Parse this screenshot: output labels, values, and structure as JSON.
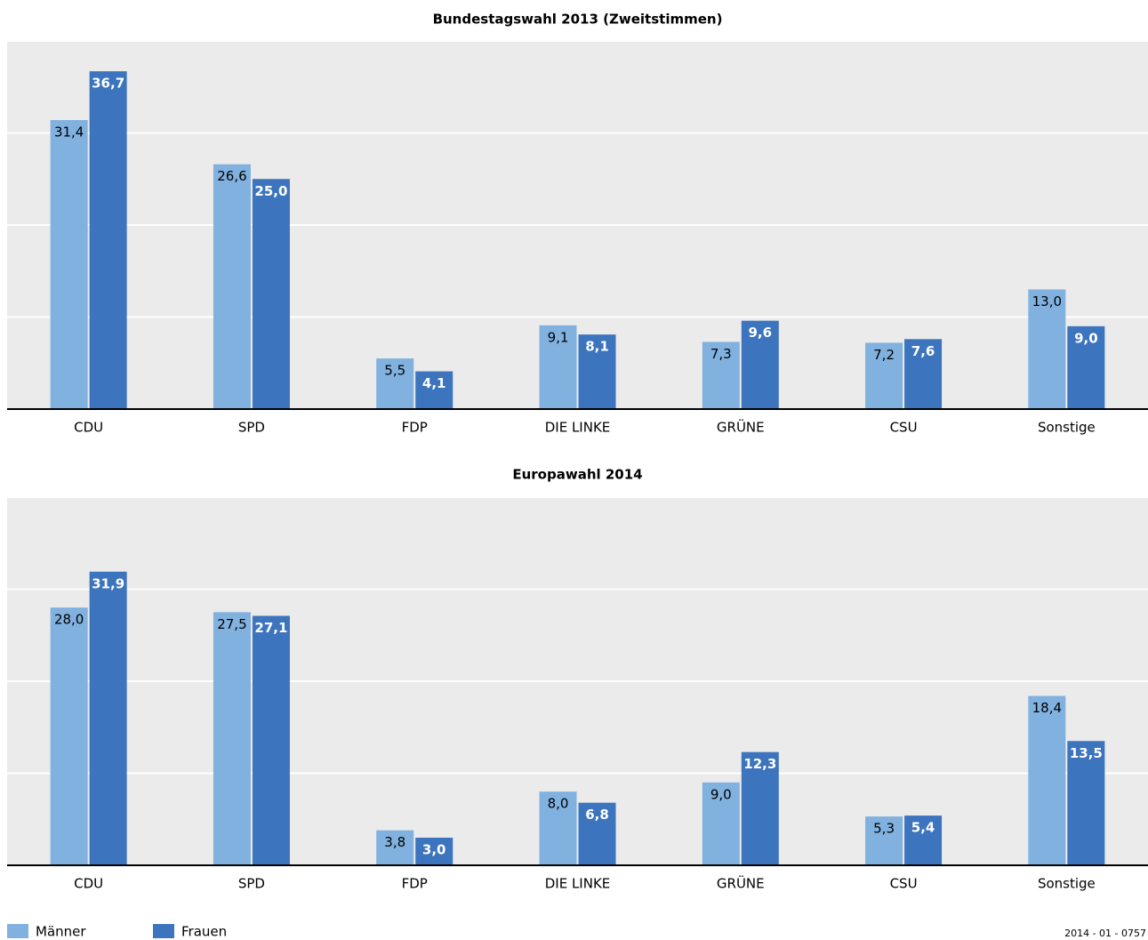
{
  "chart_data": [
    {
      "type": "bar",
      "title": "Bundestagswahl 2013 (Zweitstimmen)",
      "categories": [
        "CDU",
        "SPD",
        "FDP",
        "DIE LINKE",
        "GRÜNE",
        "CSU",
        "Sonstige"
      ],
      "series": [
        {
          "name": "Männer",
          "color": "#80b1df",
          "values": [
            31.4,
            26.6,
            5.5,
            9.1,
            7.3,
            7.2,
            13.0
          ],
          "value_labels": [
            "31,4",
            "26,6",
            "5,5",
            "9,1",
            "7,3",
            "7,2",
            "13,0"
          ]
        },
        {
          "name": "Frauen",
          "color": "#3c74bd",
          "values": [
            36.7,
            25.0,
            4.1,
            8.1,
            9.6,
            7.6,
            9.0
          ],
          "value_labels": [
            "36,7",
            "25,0",
            "4,1",
            "8,1",
            "9,6",
            "7,6",
            "9,0"
          ]
        }
      ],
      "ylim": [
        0,
        40
      ],
      "yticks": [
        0,
        10,
        20,
        30,
        40
      ],
      "grid": true,
      "legend": "bottom-left"
    },
    {
      "type": "bar",
      "title": "Europawahl 2014",
      "categories": [
        "CDU",
        "SPD",
        "FDP",
        "DIE LINKE",
        "GRÜNE",
        "CSU",
        "Sonstige"
      ],
      "series": [
        {
          "name": "Männer",
          "color": "#80b1df",
          "values": [
            28.0,
            27.5,
            3.8,
            8.0,
            9.0,
            5.3,
            18.4
          ],
          "value_labels": [
            "28,0",
            "27,5",
            "3,8",
            "8,0",
            "9,0",
            "5,3",
            "18,4"
          ]
        },
        {
          "name": "Frauen",
          "color": "#3c74bd",
          "values": [
            31.9,
            27.1,
            3.0,
            6.8,
            12.3,
            5.4,
            13.5
          ],
          "value_labels": [
            "31,9",
            "27,1",
            "3,0",
            "6,8",
            "12,3",
            "5,4",
            "13,5"
          ]
        }
      ],
      "ylim": [
        0,
        40
      ],
      "yticks": [
        0,
        10,
        20,
        30,
        40
      ],
      "grid": true
    }
  ],
  "footer": "2014 - 01 - 0757"
}
